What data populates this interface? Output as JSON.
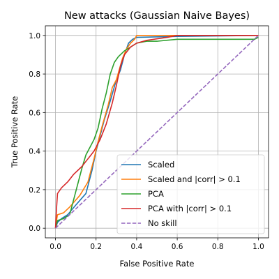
{
  "chart_data": {
    "type": "line",
    "title": "New attacks (Gaussian Naive Bayes)",
    "xlabel": "False Positive Rate",
    "ylabel": "True Positive Rate",
    "xlim": [
      -0.05,
      1.05
    ],
    "ylim": [
      -0.05,
      1.05
    ],
    "xticks": [
      "0.0",
      "0.2",
      "0.4",
      "0.6",
      "0.8",
      "1.0"
    ],
    "yticks": [
      "0.0",
      "0.2",
      "0.4",
      "0.6",
      "0.8",
      "1.0"
    ],
    "grid": true,
    "legend_position": "lower-right",
    "series": [
      {
        "name": "Scaled",
        "color": "#1f77b4",
        "style": "solid",
        "points": [
          [
            0,
            0
          ],
          [
            0.01,
            0.03
          ],
          [
            0.03,
            0.05
          ],
          [
            0.06,
            0.07
          ],
          [
            0.1,
            0.12
          ],
          [
            0.15,
            0.18
          ],
          [
            0.18,
            0.3
          ],
          [
            0.2,
            0.4
          ],
          [
            0.22,
            0.48
          ],
          [
            0.24,
            0.56
          ],
          [
            0.27,
            0.66
          ],
          [
            0.3,
            0.77
          ],
          [
            0.32,
            0.82
          ],
          [
            0.34,
            0.9
          ],
          [
            0.36,
            0.96
          ],
          [
            0.38,
            0.98
          ],
          [
            0.4,
            0.99
          ],
          [
            0.6,
            0.995
          ],
          [
            1.0,
            1.0
          ]
        ]
      },
      {
        "name": "Scaled and |corr| > 0.1",
        "color": "#ff7f0e",
        "style": "solid",
        "points": [
          [
            0,
            0
          ],
          [
            0.005,
            0.04
          ],
          [
            0.01,
            0.07
          ],
          [
            0.04,
            0.08
          ],
          [
            0.07,
            0.11
          ],
          [
            0.12,
            0.17
          ],
          [
            0.16,
            0.24
          ],
          [
            0.19,
            0.36
          ],
          [
            0.21,
            0.45
          ],
          [
            0.23,
            0.53
          ],
          [
            0.26,
            0.64
          ],
          [
            0.28,
            0.73
          ],
          [
            0.3,
            0.77
          ],
          [
            0.33,
            0.88
          ],
          [
            0.35,
            0.93
          ],
          [
            0.37,
            0.96
          ],
          [
            0.39,
            0.98
          ],
          [
            0.4,
            1.0
          ],
          [
            1.0,
            1.0
          ]
        ]
      },
      {
        "name": "PCA",
        "color": "#2ca02c",
        "style": "solid",
        "points": [
          [
            0,
            0
          ],
          [
            0.01,
            0.04
          ],
          [
            0.04,
            0.05
          ],
          [
            0.07,
            0.07
          ],
          [
            0.09,
            0.15
          ],
          [
            0.11,
            0.23
          ],
          [
            0.13,
            0.31
          ],
          [
            0.15,
            0.38
          ],
          [
            0.17,
            0.42
          ],
          [
            0.19,
            0.46
          ],
          [
            0.21,
            0.52
          ],
          [
            0.23,
            0.62
          ],
          [
            0.25,
            0.7
          ],
          [
            0.27,
            0.8
          ],
          [
            0.29,
            0.86
          ],
          [
            0.31,
            0.89
          ],
          [
            0.34,
            0.92
          ],
          [
            0.37,
            0.94
          ],
          [
            0.4,
            0.96
          ],
          [
            0.45,
            0.97
          ],
          [
            0.5,
            0.97
          ],
          [
            0.6,
            0.98
          ],
          [
            0.8,
            0.98
          ],
          [
            0.98,
            0.98
          ],
          [
            1.0,
            0.99
          ]
        ]
      },
      {
        "name": "PCA with |corr| > 0.1",
        "color": "#d62728",
        "style": "solid",
        "points": [
          [
            0,
            0
          ],
          [
            0.005,
            0.1
          ],
          [
            0.01,
            0.18
          ],
          [
            0.03,
            0.21
          ],
          [
            0.06,
            0.24
          ],
          [
            0.09,
            0.28
          ],
          [
            0.13,
            0.32
          ],
          [
            0.16,
            0.36
          ],
          [
            0.19,
            0.4
          ],
          [
            0.22,
            0.46
          ],
          [
            0.25,
            0.54
          ],
          [
            0.28,
            0.65
          ],
          [
            0.3,
            0.74
          ],
          [
            0.32,
            0.84
          ],
          [
            0.34,
            0.9
          ],
          [
            0.37,
            0.94
          ],
          [
            0.4,
            0.96
          ],
          [
            0.45,
            0.975
          ],
          [
            0.55,
            0.99
          ],
          [
            0.6,
            1.0
          ],
          [
            1.0,
            1.0
          ]
        ]
      },
      {
        "name": "No skill",
        "color": "#9467bd",
        "style": "dashed",
        "points": [
          [
            0,
            0
          ],
          [
            1,
            1
          ]
        ]
      }
    ]
  }
}
